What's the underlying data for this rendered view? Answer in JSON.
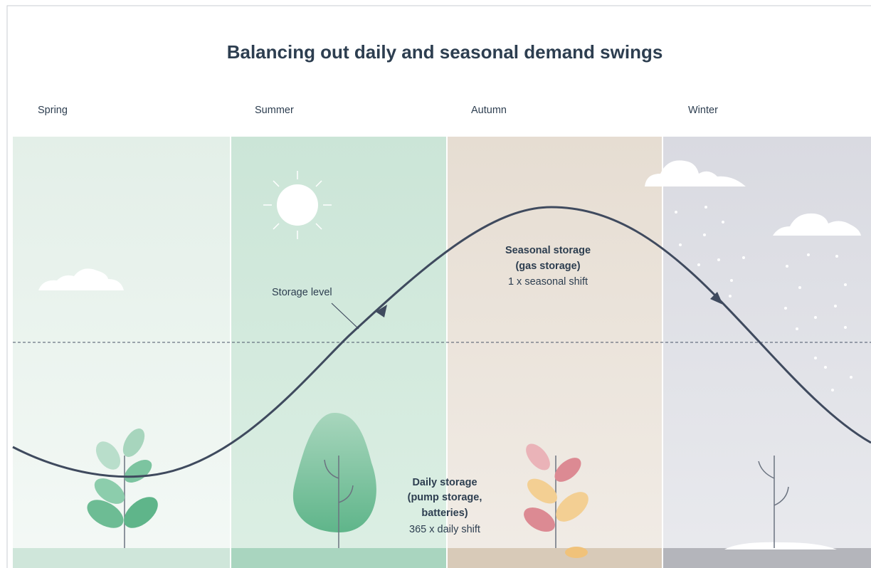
{
  "title": "Balancing out daily and seasonal demand swings",
  "seasons": [
    "Spring",
    "Summer",
    "Autumn",
    "Winter"
  ],
  "annotations": {
    "storage_level": "Storage level",
    "seasonal": [
      "Seasonal storage",
      "(gas storage)",
      "1 x seasonal shift"
    ],
    "daily": [
      "Daily storage",
      "(pump storage,",
      "batteries)",
      "365 x daily shift"
    ]
  }
}
